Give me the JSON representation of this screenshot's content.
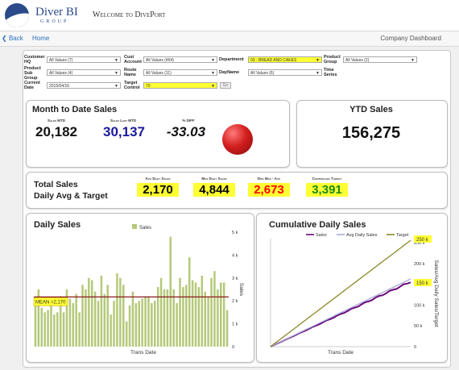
{
  "app": {
    "logo_main": "Diver BI",
    "logo_sub": "GROUP",
    "welcome": "Welcome to DivePort"
  },
  "nav": {
    "back": "Back",
    "home": "Home",
    "title": "Company Dashboard"
  },
  "filters": {
    "customer_hq": {
      "label": "Customer HQ",
      "value": "All Values (7)"
    },
    "cust_account": {
      "label": "Cust Account",
      "value": "All Values (464)"
    },
    "department": {
      "label": "Department",
      "value": "03 - BREAD AND CAKES"
    },
    "product_group": {
      "label": "Product Group",
      "value": "All Values (2)"
    },
    "product_sub_group": {
      "label": "Product Sub Group",
      "value": "All Values (4)"
    },
    "route_name": {
      "label": "Route Name",
      "value": "All Values (11)"
    },
    "dayname": {
      "label": "DayName",
      "value": "All Values (6)"
    },
    "time_series": {
      "label": "Time Series"
    },
    "current_date": {
      "label": "Current Date",
      "value": "2015/04/16"
    },
    "target_control": {
      "label": "Target Control",
      "value": "70"
    },
    "go": "Go"
  },
  "mtd": {
    "title": "Month to Date Sales",
    "sales_mtd_label": "Sales MTD",
    "sales_mtd": "20,182",
    "sales_last_mtd_label": "Sales Last MTD",
    "sales_last_mtd": "30,137",
    "pct_diff_label": "% DIFF",
    "pct_diff": "-33.03",
    "status_color": "#d41f1f"
  },
  "ytd": {
    "title": "YTD Sales",
    "value": "156,275"
  },
  "totals": {
    "title_line1": "Total Sales",
    "title_line2": "Daily Avg & Target",
    "avg_label": "Avg Daily Sales",
    "avg": "2,170",
    "max_label": "Max Daily Sales",
    "max": "4,844",
    "diff_label": "Diff Max - Avg",
    "diff": "2,673",
    "target_label": "Controlled Target",
    "target": "3,391",
    "colors": {
      "avg": "#000000",
      "max": "#000000",
      "diff": "#ff0000",
      "target": "#1a8a1a",
      "highlight": "#ffff33"
    }
  },
  "chart_data": [
    {
      "type": "bar",
      "title": "Daily Sales",
      "xlabel": "Trans Date",
      "ylabel": "Sales",
      "ylim": [
        0,
        5000
      ],
      "yticks": [
        "0",
        "1 k",
        "2 k",
        "3 k",
        "4 k",
        "5 k"
      ],
      "legend": [
        "Sales"
      ],
      "mean_label": "MEAN =2,170",
      "mean": 2170,
      "bar_color": "#b5c97a",
      "mean_color": "#8b1a1a",
      "values": [
        1900,
        2500,
        1700,
        1500,
        1600,
        2000,
        1400,
        1500,
        2200,
        1500,
        2500,
        2100,
        1900,
        2300,
        1500,
        2700,
        2500,
        3000,
        2900,
        2400,
        2000,
        3100,
        2300,
        2700,
        1400,
        2000,
        3200,
        3000,
        2700,
        1100,
        1800,
        2400,
        1900,
        2000,
        2100,
        2200,
        2200,
        1900,
        2000,
        2600,
        3000,
        2500,
        2500,
        4800,
        2500,
        1900,
        3000,
        2600,
        2700,
        3900,
        2900,
        2800,
        2600,
        3100,
        2400,
        2200,
        3000,
        3300,
        2500,
        2800,
        2800,
        1600
      ]
    },
    {
      "type": "line",
      "title": "Cumulative Daily Sales",
      "xlabel": "Trans Date",
      "ylabel": "Sales/Avg Daily Sales/Target",
      "ylim": [
        0,
        260000
      ],
      "yticks": [
        "0",
        "50 k",
        "100 k",
        "150 k",
        "200 k",
        "250 k"
      ],
      "end_labels": [
        "250 k",
        "150 k"
      ],
      "series": [
        {
          "name": "Sales",
          "color": "#6a0a7a",
          "start": 0,
          "end": 156275
        },
        {
          "name": "Avg Daily Sales",
          "color": "#a8a8d8",
          "start": 0,
          "end": 163000
        },
        {
          "name": "Target",
          "color": "#8a8a2a",
          "start": 0,
          "end": 256000
        }
      ]
    }
  ]
}
